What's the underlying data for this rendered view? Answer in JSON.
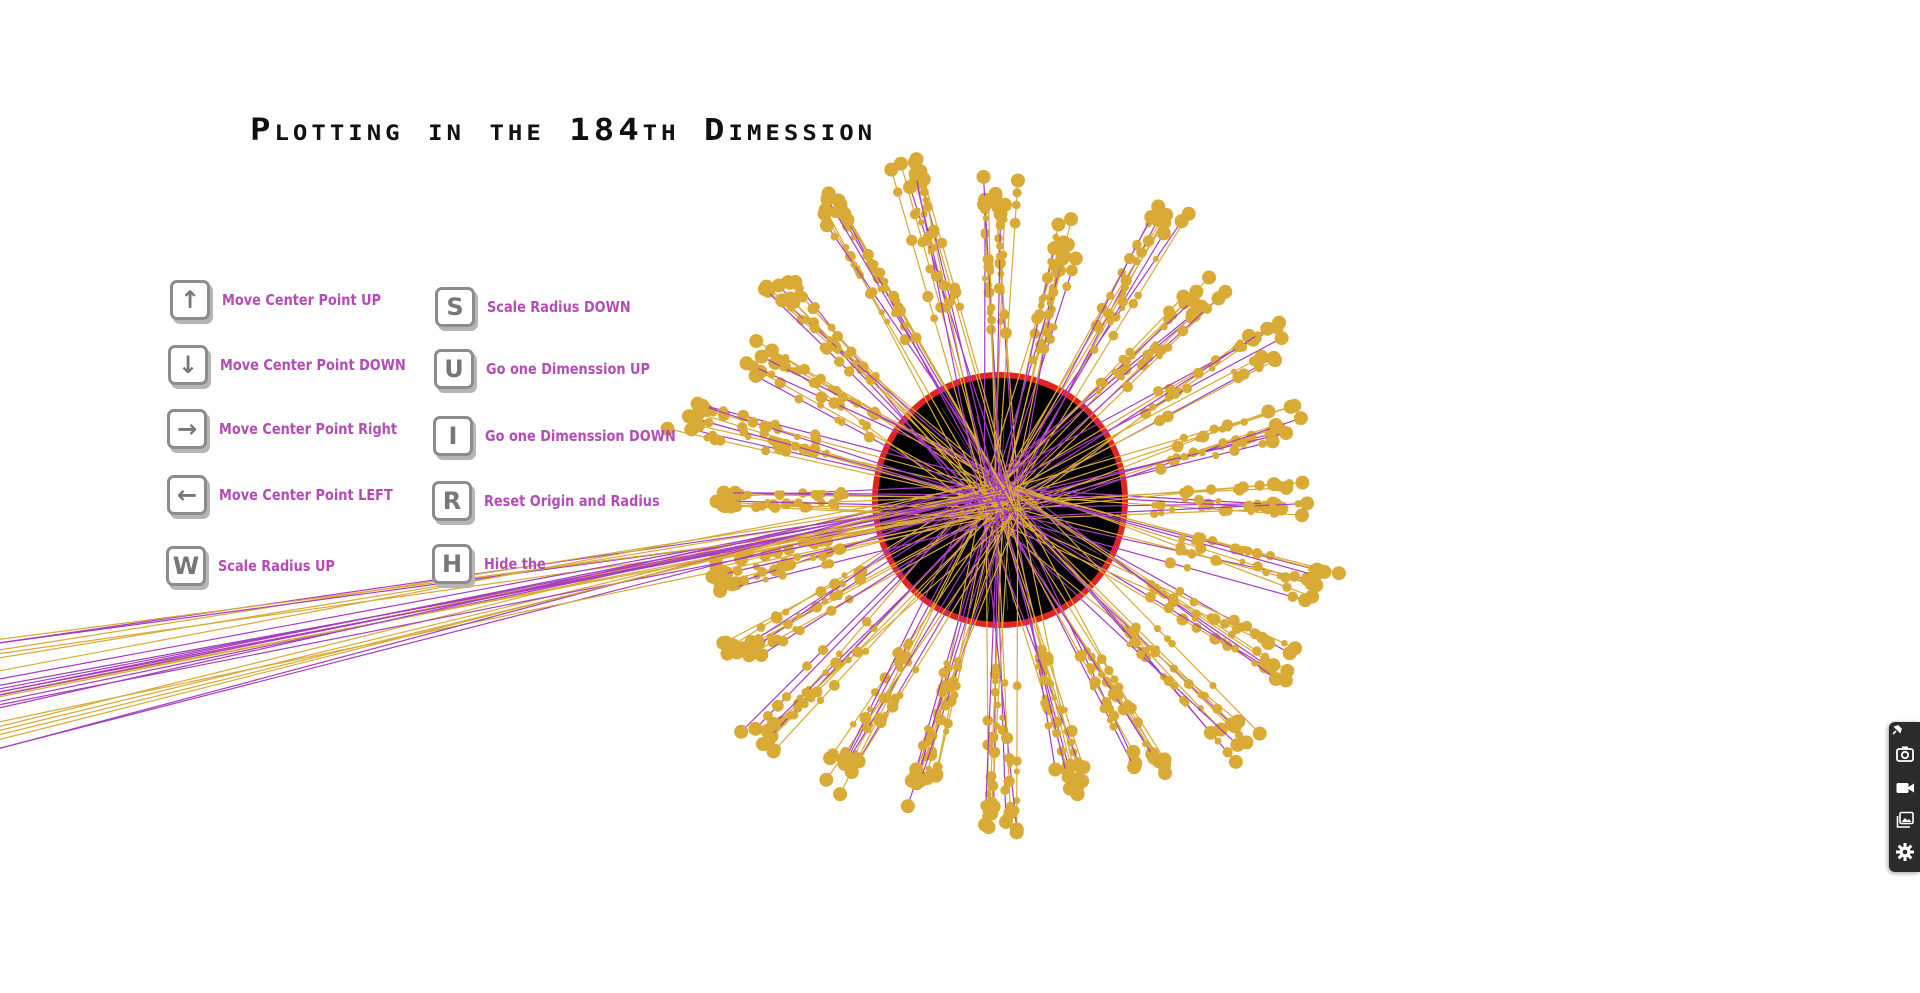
{
  "page": {
    "title": "Plotting in the  184th Dimession"
  },
  "legend": [
    {
      "key": "↑",
      "label": "Move Center Point UP"
    },
    {
      "key": "↓",
      "label": "Move Center Point DOWN"
    },
    {
      "key": "→",
      "label": "Move Center Point Right"
    },
    {
      "key": "←",
      "label": "Move Center Point LEFT"
    },
    {
      "key": "W",
      "label": "Scale Radius UP"
    },
    {
      "key": "S",
      "label": "Scale Radius DOWN"
    },
    {
      "key": "U",
      "label": "Go one Dimenssion UP"
    },
    {
      "key": "I",
      "label": "Go one Dimenssion DOWN"
    },
    {
      "key": "R",
      "label": "Reset Origin and Radius"
    },
    {
      "key": "H",
      "label": "Hide the"
    }
  ],
  "toolbar": {
    "buttons": [
      {
        "icon": "camera-icon"
      },
      {
        "icon": "video-camera-icon"
      },
      {
        "icon": "gallery-icon"
      },
      {
        "icon": "gear-icon"
      }
    ]
  },
  "colors": {
    "circle_stroke": "#e3231f",
    "circle_fill": "#000000",
    "spoke_purple": "#a73cc2",
    "spoke_gold": "#d9aa35",
    "legend_text": "#b44cb8",
    "key_border": "#8c8c8c"
  }
}
